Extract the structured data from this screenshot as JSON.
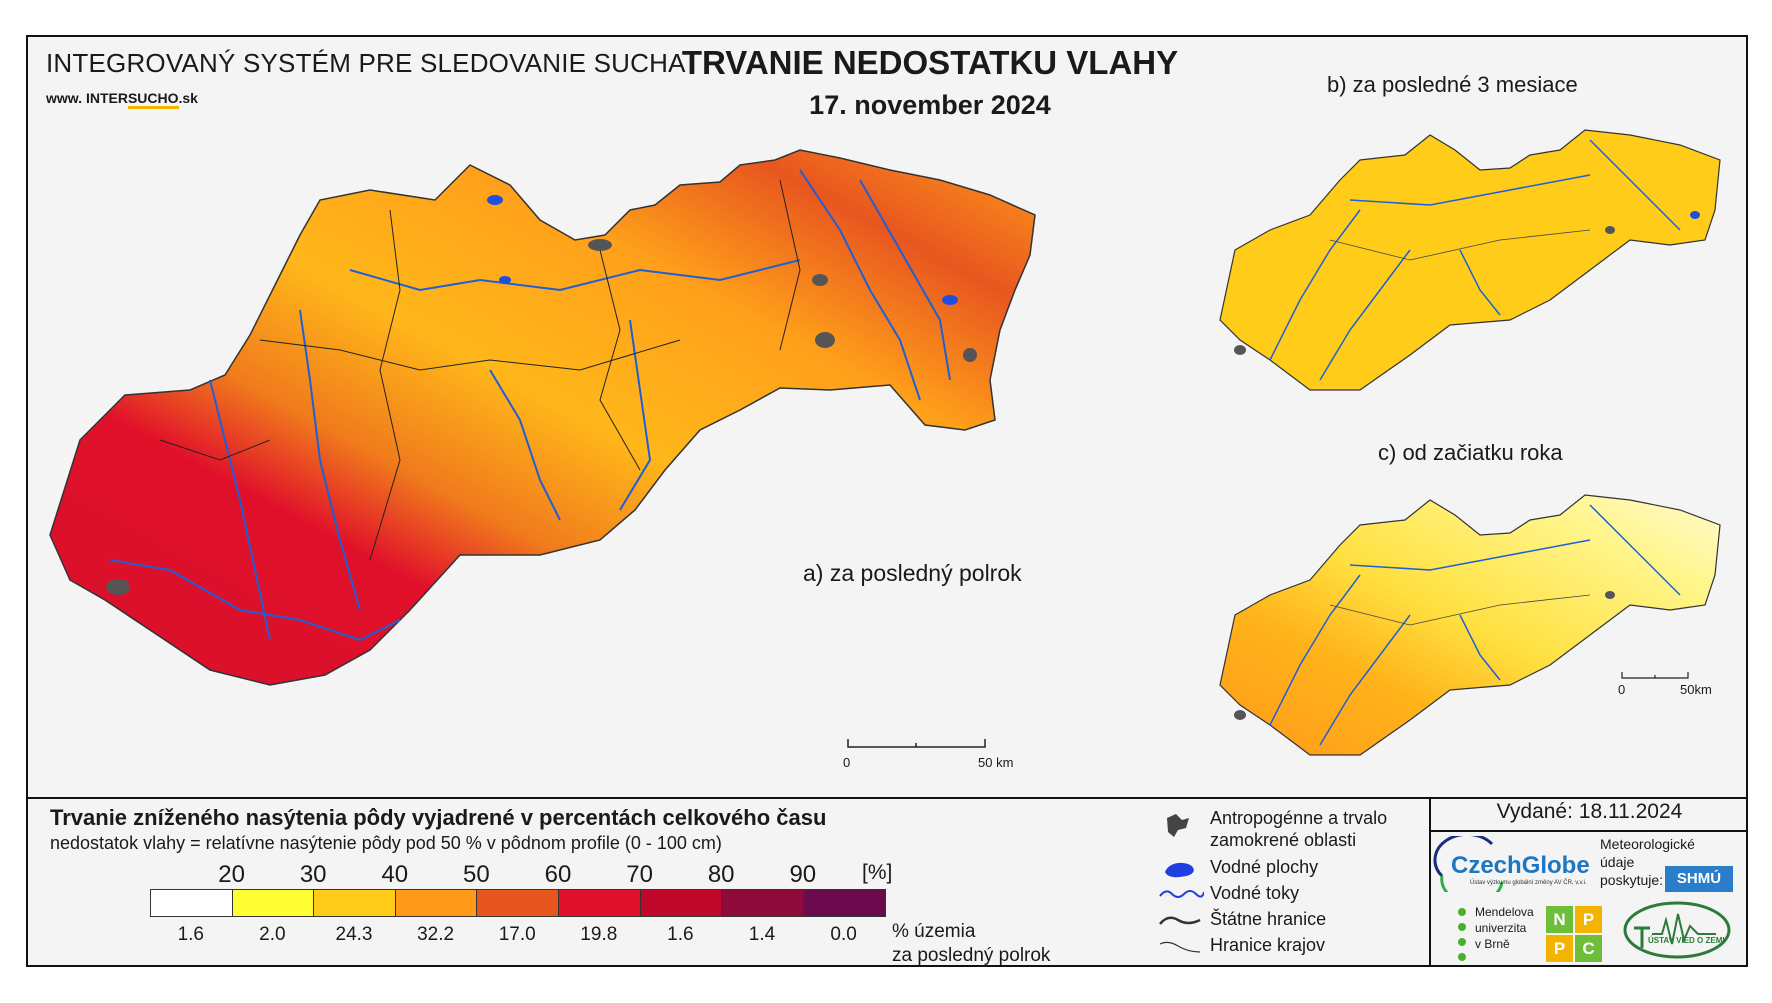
{
  "header": {
    "system_title": "INTEGROVANÝ SYSTÉM PRE SLEDOVANIE SUCHA",
    "website_prefix": "www.",
    "website_a": "INTER",
    "website_b": "SUCHO",
    "website_c": ".sk",
    "title": "TRVANIE NEDOSTATKU VLAHY",
    "date": "17. november 2024"
  },
  "maps": {
    "a_label": "a) za posledný polrok",
    "b_label": "b) za posledné 3 mesiace",
    "c_label": "c) od začiatku roka",
    "main_scale": {
      "zero": "0",
      "end": "50 km"
    },
    "small_scale": {
      "zero": "0",
      "end": "50km"
    }
  },
  "legend": {
    "title": "Trvanie zníženého nasýtenia pôdy vyjadrené v percentách celkového času",
    "subtitle": "nedostatok vlahy = relatívne nasýtenie pôdy pod 50 % v pôdnom profile (0 - 100 cm)",
    "thresholds": [
      "20",
      "30",
      "40",
      "50",
      "60",
      "70",
      "80",
      "90"
    ],
    "unit": "[%]",
    "colors": [
      "#ffffff",
      "#ffff33",
      "#ffcc1a",
      "#ff9a1a",
      "#e8561f",
      "#e0102a",
      "#c0082a",
      "#8e0a3a",
      "#6b0a4c"
    ],
    "percentages": [
      "1.6",
      "2.0",
      "24.3",
      "32.2",
      "17.0",
      "19.8",
      "1.6",
      "1.4",
      "0.0"
    ],
    "percent_label_line1": "% územia",
    "percent_label_line2": "za posledný polrok"
  },
  "symbols": {
    "anthropogenic_1": "Antropogénne a trvalo",
    "anthropogenic_2": "zamokrené oblasti",
    "water_bodies": "Vodné plochy",
    "rivers": "Vodné toky",
    "state_borders": "Štátne hranice",
    "region_borders": "Hranice krajov"
  },
  "issued": "Vydané: 18.11.2024",
  "logos": {
    "czechglobe": "CzechGlobe",
    "czechglobe_sub": "Ústav výzkumu globální změny AV ČR, v.v.i.",
    "shmu_note_1": "Meteorologické",
    "shmu_note_2": "údaje",
    "shmu_note_3": "poskytuje:",
    "shmu": "SHMÚ",
    "mendelu_1": "Mendelova",
    "mendelu_2": "univerzita",
    "mendelu_3": "v Brně",
    "nppc": [
      "N",
      "P",
      "P",
      "C"
    ],
    "uvz": "ÚSTAV VIED O ZEMI"
  }
}
